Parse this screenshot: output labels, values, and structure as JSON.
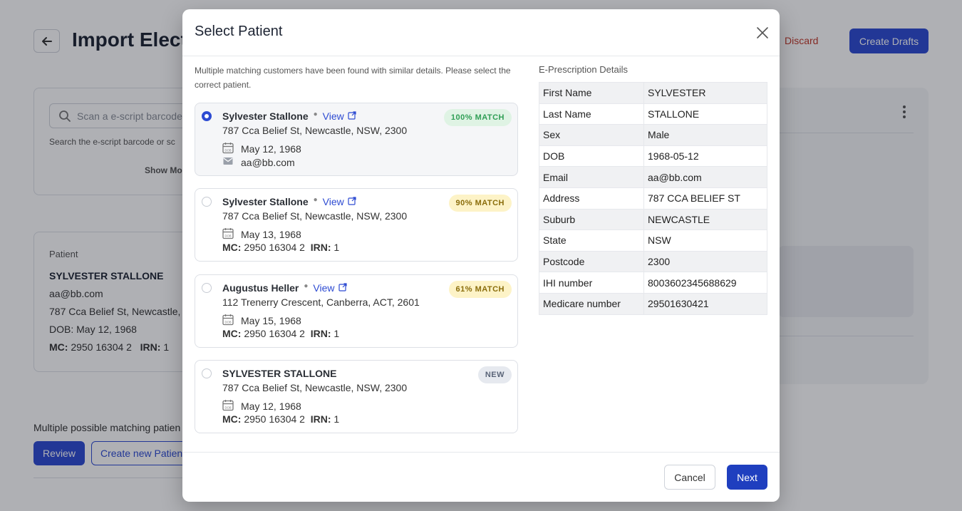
{
  "page": {
    "title": "Import Electr",
    "discard_label": "Discard",
    "create_drafts_label": "Create Drafts",
    "scan": {
      "placeholder": "Scan a e-script barcode",
      "help": "Search the e-script barcode or sc",
      "show_more": "Show Mo"
    },
    "patient_card": {
      "label": "Patient",
      "name": "SYLVESTER STALLONE",
      "email": "aa@bb.com",
      "address": "787 Cca Belief St, Newcastle,",
      "dob": "DOB: May 12, 1968",
      "mc_label": "MC:",
      "mc_value": "2950 16304 2",
      "irn_label": "IRN:",
      "irn_value": "1"
    },
    "multiple_text": "Multiple possible matching patien",
    "review_label": "Review",
    "create_new_label": "Create new Patien"
  },
  "modal": {
    "title": "Select Patient",
    "intro": "Multiple matching customers have been found with similar details. Please select the correct patient.",
    "view_label": "View",
    "mc_label": "MC:",
    "irn_label": "IRN:",
    "options": [
      {
        "name": "Sylvester Stallone",
        "address": "787 Cca Belief St, Newcastle, NSW, 2300",
        "dob": "May 12, 1968",
        "email": "aa@bb.com",
        "badge": "100% MATCH",
        "badge_color": "#2f9e55",
        "selected": true
      },
      {
        "name": "Sylvester Stallone",
        "address": "787 Cca Belief St, Newcastle, NSW, 2300",
        "dob": "May 13, 1968",
        "mc": "2950 16304 2",
        "irn": "1",
        "badge": "90% MATCH",
        "badge_color": "#8a6d0b",
        "selected": false
      },
      {
        "name": "Augustus Heller",
        "address": "112 Trenerry Crescent, Canberra, ACT, 2601",
        "dob": "May 15, 1968",
        "mc": "2950 16304 2",
        "irn": "1",
        "badge": "61% MATCH",
        "badge_color": "#8a6d0b",
        "selected": false
      },
      {
        "name": "SYLVESTER STALLONE",
        "address": "787 Cca Belief St, Newcastle, NSW, 2300",
        "dob": "May 12, 1968",
        "mc": "2950 16304 2",
        "irn": "1",
        "badge": "NEW",
        "badge_color": "#5a6478",
        "selected": false
      }
    ],
    "details": {
      "title": "E-Prescription Details",
      "rows": [
        {
          "key": "First Name",
          "value": "SYLVESTER"
        },
        {
          "key": "Last Name",
          "value": "STALLONE"
        },
        {
          "key": "Sex",
          "value": "Male"
        },
        {
          "key": "DOB",
          "value": "1968-05-12"
        },
        {
          "key": "Email",
          "value": "aa@bb.com"
        },
        {
          "key": "Address",
          "value": "787 CCA BELIEF ST"
        },
        {
          "key": "Suburb",
          "value": "NEWCASTLE"
        },
        {
          "key": "State",
          "value": "NSW"
        },
        {
          "key": "Postcode",
          "value": "2300"
        },
        {
          "key": "IHI number",
          "value": "8003602345688629"
        },
        {
          "key": "Medicare number",
          "value": "29501630421"
        }
      ]
    },
    "cancel_label": "Cancel",
    "next_label": "Next"
  },
  "colors": {
    "primary": "#2d4bd2",
    "danger": "#c0392b",
    "overlay": "rgba(12,16,28,0.33)"
  }
}
